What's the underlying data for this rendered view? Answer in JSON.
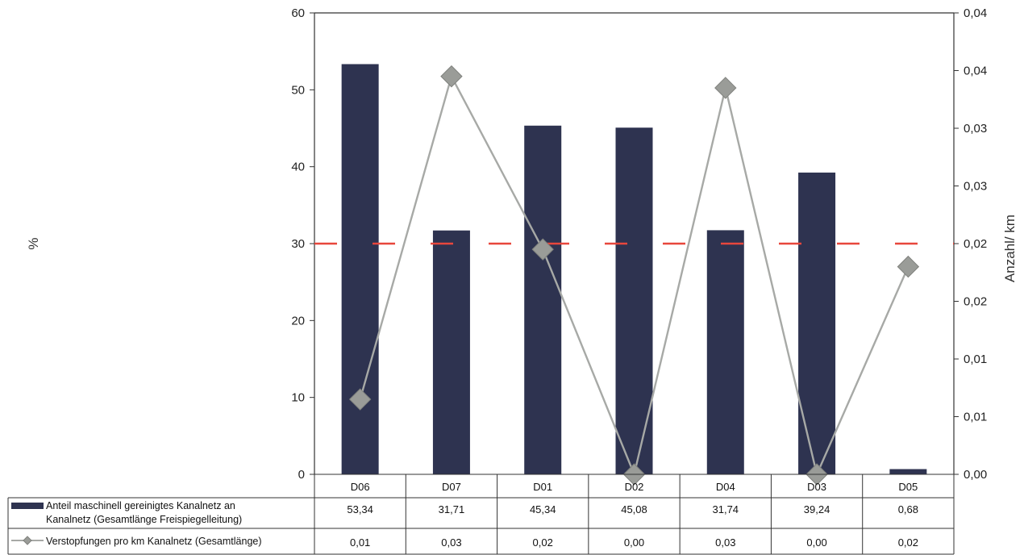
{
  "chart_data": {
    "type": "bar",
    "categories": [
      "D06",
      "D07",
      "D01",
      "D02",
      "D04",
      "D03",
      "D05"
    ],
    "series": [
      {
        "name": "Anteil maschinell gereinigtes Kanalnetz an Kanalnetz (Gesamtlänge Freispiegelleitung)",
        "name_lines": [
          "Anteil maschinell gereinigtes Kanalnetz an",
          "Kanalnetz (Gesamtlänge Freispiegelleitung)"
        ],
        "axis": "left",
        "kind": "bar",
        "values": [
          53.34,
          31.71,
          45.34,
          45.08,
          31.74,
          39.24,
          0.68
        ],
        "labels": [
          "53,34",
          "31,71",
          "45,34",
          "45,08",
          "31,74",
          "39,24",
          "0,68"
        ],
        "color": "#2e3350"
      },
      {
        "name": "Verstopfungen pro km Kanalnetz (Gesamtlänge)",
        "axis": "right",
        "kind": "line",
        "values": [
          0.0065,
          0.0345,
          0.0195,
          0.0,
          0.0335,
          0.0,
          0.018
        ],
        "labels": [
          "0,01",
          "0,03",
          "0,02",
          "0,00",
          "0,03",
          "0,00",
          "0,02"
        ],
        "color": "#a7a9a6",
        "marker_color": "#9a9c98"
      }
    ],
    "reference_line": {
      "axis": "left",
      "value": 30,
      "color": "#e8473c",
      "style": "dashed"
    },
    "ylabel": "%",
    "y2label": "Anzahl/ km",
    "ylim": [
      0,
      60
    ],
    "yticks": [
      0,
      10,
      20,
      30,
      40,
      50,
      60
    ],
    "y2lim": [
      0,
      0.04
    ],
    "y2ticks": [
      0,
      0.005,
      0.01,
      0.015,
      0.02,
      0.025,
      0.03,
      0.035,
      0.04
    ],
    "y2tick_labels": [
      "0,00",
      "0,01",
      "0,01",
      "0,02",
      "0,02",
      "0,03",
      "0,03",
      "0,04",
      "0,04"
    ],
    "grid": false,
    "legend": "data-table"
  }
}
